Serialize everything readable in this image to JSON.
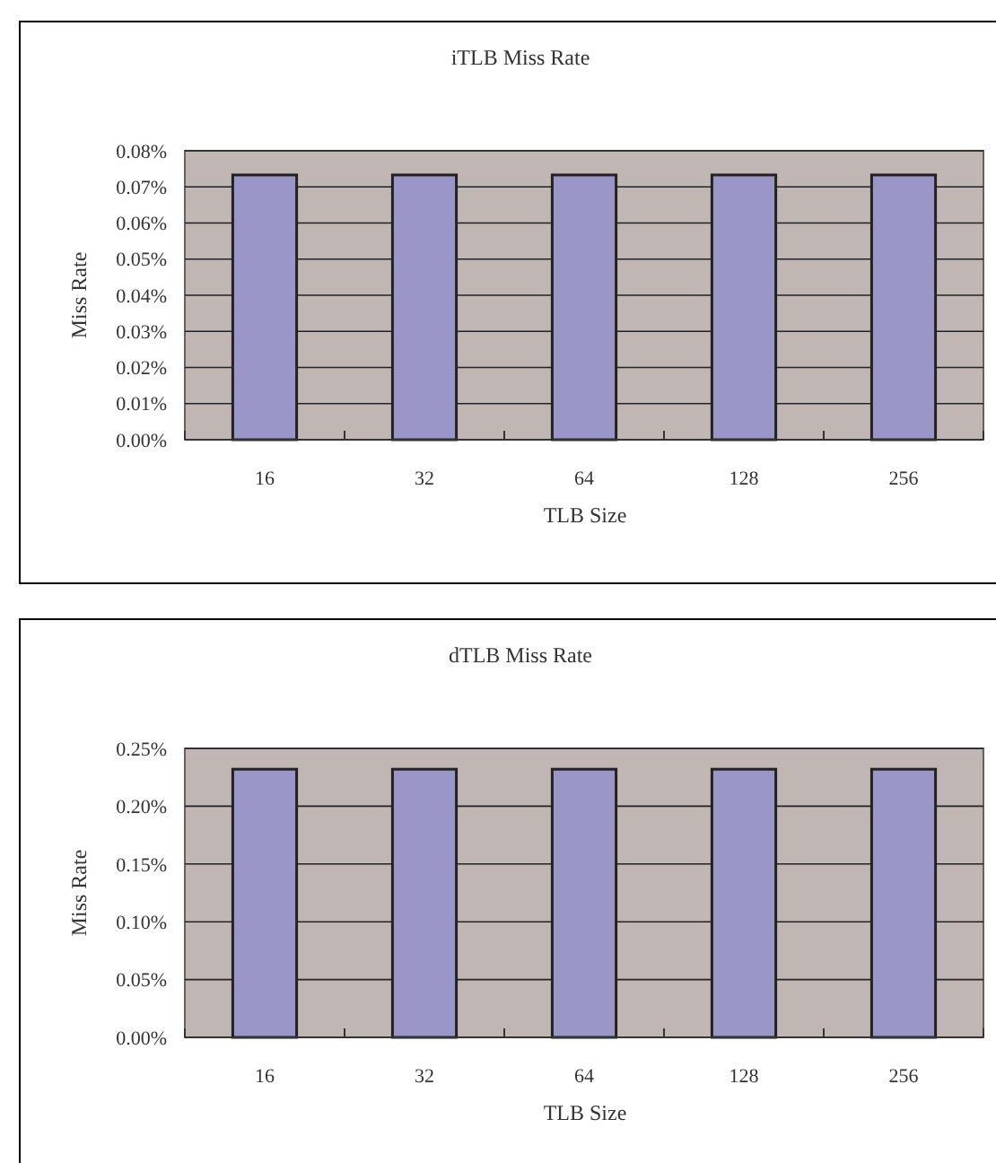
{
  "chart_data": [
    {
      "type": "bar",
      "title": "iTLB Miss Rate",
      "xlabel": "TLB Size",
      "ylabel": "Miss Rate",
      "categories": [
        "16",
        "32",
        "64",
        "128",
        "256"
      ],
      "values": [
        0.0733,
        0.0733,
        0.0733,
        0.0733,
        0.0733
      ],
      "color": "#9b96c8",
      "ylim": [
        0,
        0.08
      ],
      "yticks": [
        {
          "value": 0,
          "label": "0.00%"
        },
        {
          "value": 0.01,
          "label": "0.01%"
        },
        {
          "value": 0.02,
          "label": "0.02%"
        },
        {
          "value": 0.03,
          "label": "0.03%"
        },
        {
          "value": 0.04,
          "label": "0.04%"
        },
        {
          "value": 0.05,
          "label": "0.05%"
        },
        {
          "value": 0.06,
          "label": "0.06%"
        },
        {
          "value": 0.07,
          "label": "0.07%"
        },
        {
          "value": 0.08,
          "label": "0.08%"
        }
      ],
      "grid": "y"
    },
    {
      "type": "bar",
      "title": "dTLB Miss Rate",
      "xlabel": "TLB Size",
      "ylabel": "Miss Rate",
      "categories": [
        "16",
        "32",
        "64",
        "128",
        "256"
      ],
      "values": [
        0.232,
        0.232,
        0.232,
        0.232,
        0.232
      ],
      "color": "#9b96c8",
      "ylim": [
        0,
        0.25
      ],
      "yticks": [
        {
          "value": 0,
          "label": "0.00%"
        },
        {
          "value": 0.05,
          "label": "0.05%"
        },
        {
          "value": 0.1,
          "label": "0.10%"
        },
        {
          "value": 0.15,
          "label": "0.15%"
        },
        {
          "value": 0.2,
          "label": "0.20%"
        },
        {
          "value": 0.25,
          "label": "0.25%"
        }
      ],
      "grid": "y"
    }
  ]
}
